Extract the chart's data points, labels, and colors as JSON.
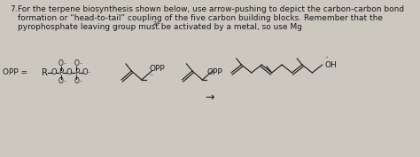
{
  "bg_color": "#ccc8c0",
  "font_color": "#1a1a1a",
  "font_size_text": 6.5,
  "font_size_struct": 6.0,
  "line1": "For the terpene biosynthesis shown below, use arrow-pushing to depict the carbon-carbon bond",
  "line2": "formation or “head-to-tail” coupling of the five carbon building blocks. Remember that the",
  "line3": "pyrophosphate leaving group must be activated by a metal, so use Mg",
  "line3_super": "2+",
  "line3_end": ".",
  "opp_eq": "OPP =",
  "arrow": "→"
}
